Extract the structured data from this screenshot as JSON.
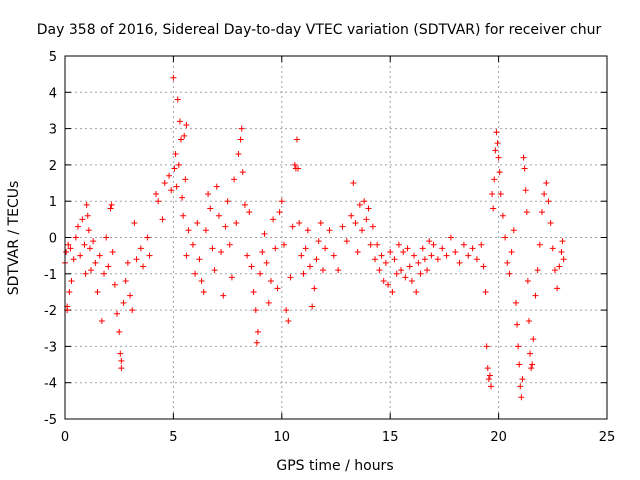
{
  "chart_data": {
    "type": "scatter",
    "title": "Day 358 of 2016, Sidereal Day-to-day VTEC variation (SDTVAR) for receiver chur",
    "xlabel": "GPS time / hours",
    "ylabel": "SDTVAR / TECUs",
    "xlim": [
      0,
      25
    ],
    "ylim": [
      -5,
      5
    ],
    "xticks": [
      0,
      5,
      10,
      15,
      20,
      25
    ],
    "yticks": [
      -5,
      -4,
      -3,
      -2,
      -1,
      0,
      1,
      2,
      3,
      4,
      5
    ],
    "grid": true,
    "marker": "+",
    "color": "#ff0000",
    "series": [
      {
        "name": "SDTVAR",
        "points": [
          [
            0.0,
            -0.7
          ],
          [
            0.05,
            -0.4
          ],
          [
            0.1,
            -1.9
          ],
          [
            0.1,
            -2.0
          ],
          [
            0.15,
            -0.2
          ],
          [
            0.2,
            -1.5
          ],
          [
            0.25,
            -0.3
          ],
          [
            0.3,
            -1.2
          ],
          [
            0.4,
            -0.6
          ],
          [
            0.5,
            0.0
          ],
          [
            0.6,
            0.3
          ],
          [
            0.7,
            -0.5
          ],
          [
            0.8,
            0.5
          ],
          [
            0.9,
            -0.2
          ],
          [
            0.95,
            -1.0
          ],
          [
            1.0,
            0.9
          ],
          [
            1.05,
            0.6
          ],
          [
            1.1,
            0.2
          ],
          [
            1.15,
            -0.3
          ],
          [
            1.2,
            -0.9
          ],
          [
            1.3,
            -0.1
          ],
          [
            1.4,
            -0.7
          ],
          [
            1.5,
            -1.5
          ],
          [
            1.6,
            -0.5
          ],
          [
            1.7,
            -2.3
          ],
          [
            1.8,
            -1.0
          ],
          [
            1.9,
            0.0
          ],
          [
            2.0,
            -0.8
          ],
          [
            2.1,
            0.8
          ],
          [
            2.15,
            0.9
          ],
          [
            2.2,
            -0.4
          ],
          [
            2.3,
            -1.3
          ],
          [
            2.4,
            -2.1
          ],
          [
            2.5,
            -2.6
          ],
          [
            2.55,
            -3.2
          ],
          [
            2.6,
            -3.4
          ],
          [
            2.6,
            -3.6
          ],
          [
            2.7,
            -1.8
          ],
          [
            2.8,
            -1.2
          ],
          [
            2.9,
            -0.7
          ],
          [
            3.0,
            -1.6
          ],
          [
            3.1,
            -2.0
          ],
          [
            3.2,
            0.4
          ],
          [
            3.3,
            -0.6
          ],
          [
            3.5,
            -0.3
          ],
          [
            3.6,
            -0.8
          ],
          [
            3.8,
            0.0
          ],
          [
            3.9,
            -0.5
          ],
          [
            4.2,
            1.2
          ],
          [
            4.3,
            1.0
          ],
          [
            4.5,
            0.5
          ],
          [
            4.6,
            1.5
          ],
          [
            4.8,
            1.7
          ],
          [
            4.9,
            1.3
          ],
          [
            5.0,
            4.4
          ],
          [
            5.05,
            1.9
          ],
          [
            5.1,
            2.3
          ],
          [
            5.15,
            1.4
          ],
          [
            5.2,
            3.8
          ],
          [
            5.25,
            2.0
          ],
          [
            5.3,
            3.2
          ],
          [
            5.35,
            2.7
          ],
          [
            5.4,
            1.1
          ],
          [
            5.45,
            0.6
          ],
          [
            5.5,
            2.8
          ],
          [
            5.55,
            1.6
          ],
          [
            5.6,
            -0.5
          ],
          [
            5.6,
            3.1
          ],
          [
            5.7,
            0.2
          ],
          [
            5.9,
            -0.2
          ],
          [
            6.0,
            -1.0
          ],
          [
            6.1,
            0.4
          ],
          [
            6.2,
            -0.6
          ],
          [
            6.3,
            -1.2
          ],
          [
            6.4,
            -1.5
          ],
          [
            6.5,
            0.2
          ],
          [
            6.6,
            1.2
          ],
          [
            6.7,
            0.8
          ],
          [
            6.8,
            -0.3
          ],
          [
            6.9,
            -0.9
          ],
          [
            7.0,
            1.4
          ],
          [
            7.1,
            0.6
          ],
          [
            7.2,
            -0.4
          ],
          [
            7.3,
            -1.6
          ],
          [
            7.4,
            0.3
          ],
          [
            7.5,
            1.0
          ],
          [
            7.6,
            -0.2
          ],
          [
            7.7,
            -1.1
          ],
          [
            7.8,
            1.6
          ],
          [
            7.9,
            0.4
          ],
          [
            8.0,
            2.3
          ],
          [
            8.1,
            2.7
          ],
          [
            8.15,
            3.0
          ],
          [
            8.2,
            1.8
          ],
          [
            8.3,
            0.9
          ],
          [
            8.4,
            -0.5
          ],
          [
            8.5,
            0.7
          ],
          [
            8.6,
            -0.8
          ],
          [
            8.7,
            -1.5
          ],
          [
            8.8,
            -2.0
          ],
          [
            8.85,
            -2.9
          ],
          [
            8.9,
            -2.6
          ],
          [
            9.0,
            -1.0
          ],
          [
            9.1,
            -0.4
          ],
          [
            9.2,
            0.1
          ],
          [
            9.3,
            -0.7
          ],
          [
            9.4,
            -1.8
          ],
          [
            9.5,
            -1.2
          ],
          [
            9.6,
            0.5
          ],
          [
            9.7,
            -0.3
          ],
          [
            9.8,
            -1.4
          ],
          [
            9.9,
            0.7
          ],
          [
            10.0,
            1.0
          ],
          [
            10.1,
            -0.2
          ],
          [
            10.2,
            -2.0
          ],
          [
            10.3,
            -2.3
          ],
          [
            10.4,
            -1.1
          ],
          [
            10.5,
            0.3
          ],
          [
            10.6,
            2.0
          ],
          [
            10.65,
            1.9
          ],
          [
            10.7,
            2.7
          ],
          [
            10.75,
            1.9
          ],
          [
            10.8,
            0.4
          ],
          [
            10.9,
            -0.5
          ],
          [
            11.0,
            -1.0
          ],
          [
            11.1,
            -0.3
          ],
          [
            11.2,
            0.2
          ],
          [
            11.3,
            -0.8
          ],
          [
            11.4,
            -1.9
          ],
          [
            11.5,
            -1.4
          ],
          [
            11.6,
            -0.6
          ],
          [
            11.7,
            -0.1
          ],
          [
            11.8,
            0.4
          ],
          [
            11.9,
            -0.9
          ],
          [
            12.0,
            -0.3
          ],
          [
            12.2,
            0.2
          ],
          [
            12.4,
            -0.5
          ],
          [
            12.6,
            -0.9
          ],
          [
            12.8,
            0.3
          ],
          [
            13.0,
            -0.1
          ],
          [
            13.2,
            0.6
          ],
          [
            13.3,
            1.5
          ],
          [
            13.4,
            0.4
          ],
          [
            13.5,
            -0.4
          ],
          [
            13.6,
            0.9
          ],
          [
            13.7,
            0.2
          ],
          [
            13.8,
            1.0
          ],
          [
            13.9,
            0.5
          ],
          [
            14.0,
            0.8
          ],
          [
            14.1,
            -0.2
          ],
          [
            14.2,
            0.3
          ],
          [
            14.3,
            -0.6
          ],
          [
            14.4,
            -0.2
          ],
          [
            14.5,
            -0.9
          ],
          [
            14.6,
            -0.5
          ],
          [
            14.7,
            -1.2
          ],
          [
            14.8,
            -0.7
          ],
          [
            14.9,
            -1.3
          ],
          [
            15.0,
            -0.4
          ],
          [
            15.1,
            -1.5
          ],
          [
            15.2,
            -0.6
          ],
          [
            15.3,
            -1.0
          ],
          [
            15.4,
            -0.2
          ],
          [
            15.5,
            -0.9
          ],
          [
            15.6,
            -0.4
          ],
          [
            15.7,
            -1.1
          ],
          [
            15.8,
            -0.3
          ],
          [
            15.9,
            -0.8
          ],
          [
            16.0,
            -1.2
          ],
          [
            16.1,
            -0.5
          ],
          [
            16.2,
            -1.5
          ],
          [
            16.3,
            -0.7
          ],
          [
            16.4,
            -1.0
          ],
          [
            16.5,
            -0.3
          ],
          [
            16.6,
            -0.6
          ],
          [
            16.7,
            -0.9
          ],
          [
            16.8,
            -0.1
          ],
          [
            16.9,
            -0.5
          ],
          [
            17.0,
            -0.2
          ],
          [
            17.2,
            -0.6
          ],
          [
            17.4,
            -0.3
          ],
          [
            17.6,
            -0.5
          ],
          [
            17.8,
            0.0
          ],
          [
            18.0,
            -0.4
          ],
          [
            18.2,
            -0.7
          ],
          [
            18.4,
            -0.2
          ],
          [
            18.6,
            -0.5
          ],
          [
            18.8,
            -0.3
          ],
          [
            19.0,
            -0.6
          ],
          [
            19.2,
            -0.2
          ],
          [
            19.3,
            -0.8
          ],
          [
            19.4,
            -1.5
          ],
          [
            19.45,
            -3.0
          ],
          [
            19.5,
            -3.6
          ],
          [
            19.55,
            -3.9
          ],
          [
            19.6,
            -3.8
          ],
          [
            19.65,
            -4.1
          ],
          [
            19.7,
            1.2
          ],
          [
            19.75,
            0.8
          ],
          [
            19.8,
            1.6
          ],
          [
            19.85,
            2.4
          ],
          [
            19.9,
            2.9
          ],
          [
            19.95,
            2.6
          ],
          [
            20.0,
            2.2
          ],
          [
            20.05,
            1.8
          ],
          [
            20.1,
            1.2
          ],
          [
            20.2,
            0.6
          ],
          [
            20.3,
            0.0
          ],
          [
            20.4,
            -0.7
          ],
          [
            20.5,
            -1.0
          ],
          [
            20.6,
            -0.4
          ],
          [
            20.7,
            0.2
          ],
          [
            20.8,
            -1.8
          ],
          [
            20.85,
            -2.4
          ],
          [
            20.9,
            -3.0
          ],
          [
            20.95,
            -3.5
          ],
          [
            21.0,
            -4.1
          ],
          [
            21.05,
            -4.4
          ],
          [
            21.1,
            -3.9
          ],
          [
            21.15,
            2.2
          ],
          [
            21.2,
            1.9
          ],
          [
            21.25,
            1.3
          ],
          [
            21.3,
            0.7
          ],
          [
            21.35,
            -1.2
          ],
          [
            21.4,
            -2.3
          ],
          [
            21.45,
            -3.2
          ],
          [
            21.5,
            -3.6
          ],
          [
            21.55,
            -3.5
          ],
          [
            21.6,
            -2.8
          ],
          [
            21.7,
            -1.6
          ],
          [
            21.8,
            -0.9
          ],
          [
            21.9,
            -0.2
          ],
          [
            22.0,
            0.7
          ],
          [
            22.1,
            1.2
          ],
          [
            22.2,
            1.5
          ],
          [
            22.3,
            1.0
          ],
          [
            22.4,
            0.4
          ],
          [
            22.5,
            -0.3
          ],
          [
            22.6,
            -0.9
          ],
          [
            22.7,
            -1.4
          ],
          [
            22.8,
            -0.8
          ],
          [
            22.9,
            -0.4
          ],
          [
            22.95,
            -0.1
          ],
          [
            23.0,
            -0.6
          ]
        ]
      }
    ]
  }
}
